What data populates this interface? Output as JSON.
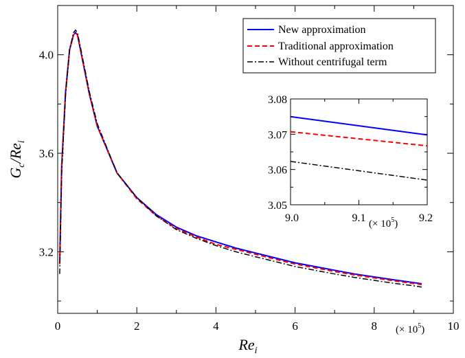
{
  "chart_data": {
    "type": "line",
    "xlabel_main": "Re",
    "xlabel_sub": "i",
    "ylabel_main": "G",
    "ylabel_sub1": "c",
    "ylabel_mid": "/Re",
    "ylabel_sub2": "i",
    "x_multiplier_prefix": "(× 10",
    "x_multiplier_exp": "5",
    "x_multiplier_suffix": ")",
    "xlim": [
      0,
      10
    ],
    "ylim": [
      2.95,
      4.2
    ],
    "x_ticks": [
      0,
      2,
      4,
      6,
      8,
      10
    ],
    "x_tick_labels": [
      "0",
      "2",
      "4",
      "6",
      "8",
      "10"
    ],
    "y_ticks": [
      3.2,
      3.6,
      4.0
    ],
    "y_tick_labels": [
      "3.2",
      "3.6",
      "4.0"
    ],
    "legend_position": "top-right",
    "series": [
      {
        "name": "New approximation",
        "color": "#0000ff",
        "dash": "solid",
        "x": [
          0.05,
          0.1,
          0.2,
          0.3,
          0.4,
          0.45,
          0.5,
          0.6,
          0.8,
          1.0,
          1.5,
          2.0,
          2.5,
          3.0,
          3.5,
          4.0,
          4.5,
          5.0,
          5.5,
          6.0,
          6.5,
          7.0,
          7.5,
          8.0,
          8.5,
          9.0,
          9.2
        ],
        "y": [
          3.15,
          3.55,
          3.85,
          4.02,
          4.08,
          4.09,
          4.08,
          4.0,
          3.84,
          3.71,
          3.52,
          3.42,
          3.35,
          3.3,
          3.265,
          3.24,
          3.215,
          3.195,
          3.175,
          3.155,
          3.14,
          3.125,
          3.11,
          3.098,
          3.086,
          3.075,
          3.07
        ]
      },
      {
        "name": "Traditional approximation",
        "color": "#ff0000",
        "dash": "dashed",
        "x": [
          0.05,
          0.1,
          0.2,
          0.3,
          0.4,
          0.45,
          0.5,
          0.6,
          0.8,
          1.0,
          1.5,
          2.0,
          2.5,
          3.0,
          3.5,
          4.0,
          4.5,
          5.0,
          5.5,
          6.0,
          6.5,
          7.0,
          7.5,
          8.0,
          8.5,
          9.0,
          9.2
        ],
        "y": [
          3.15,
          3.55,
          3.85,
          4.02,
          4.08,
          4.09,
          4.08,
          4.0,
          3.84,
          3.71,
          3.52,
          3.415,
          3.345,
          3.295,
          3.26,
          3.23,
          3.21,
          3.19,
          3.17,
          3.15,
          3.135,
          3.12,
          3.106,
          3.094,
          3.082,
          3.071,
          3.067
        ]
      },
      {
        "name": "Without centrifugal term",
        "color": "#000000",
        "dash": "dashdot",
        "x": [
          0.05,
          0.1,
          0.2,
          0.3,
          0.4,
          0.45,
          0.5,
          0.6,
          0.8,
          1.0,
          1.5,
          2.0,
          2.5,
          3.0,
          3.5,
          4.0,
          4.5,
          5.0,
          5.5,
          6.0,
          6.5,
          7.0,
          7.5,
          8.0,
          8.5,
          9.0,
          9.2
        ],
        "y": [
          3.11,
          3.52,
          3.84,
          4.02,
          4.09,
          4.1,
          4.09,
          4.01,
          3.85,
          3.72,
          3.52,
          3.42,
          3.345,
          3.29,
          3.255,
          3.225,
          3.2,
          3.18,
          3.16,
          3.14,
          3.125,
          3.11,
          3.096,
          3.084,
          3.072,
          3.062,
          3.057
        ]
      }
    ],
    "inset": {
      "xlim": [
        9.0,
        9.2
      ],
      "ylim": [
        3.05,
        3.08
      ],
      "x_ticks": [
        9.0,
        9.1,
        9.2
      ],
      "x_tick_labels": [
        "9.0",
        "9.1",
        "9.2"
      ],
      "y_ticks": [
        3.05,
        3.06,
        3.07,
        3.08
      ],
      "y_tick_labels": [
        "3.05",
        "3.06",
        "3.07",
        "3.08"
      ],
      "x_multiplier_prefix": "(× 10",
      "x_multiplier_exp": "5",
      "x_multiplier_suffix": ")",
      "series": [
        {
          "color": "#0000ff",
          "dash": "solid",
          "x": [
            9.0,
            9.2
          ],
          "y": [
            3.075,
            3.0698
          ]
        },
        {
          "color": "#ff0000",
          "dash": "dashed",
          "x": [
            9.0,
            9.2
          ],
          "y": [
            3.0707,
            3.0667
          ]
        },
        {
          "color": "#000000",
          "dash": "dashdot",
          "x": [
            9.0,
            9.2
          ],
          "y": [
            3.0623,
            3.057
          ]
        }
      ]
    }
  }
}
